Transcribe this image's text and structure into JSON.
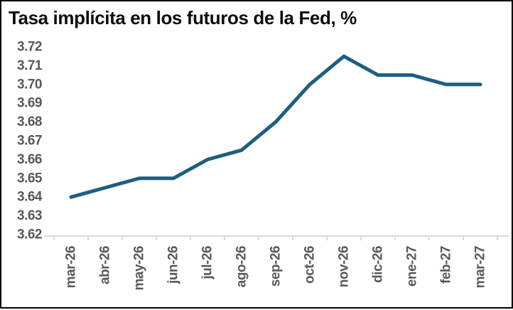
{
  "title": "Tasa implícita en los futuros de la Fed, %",
  "colors": {
    "line": "#1E5F80",
    "axis": "#D9D9D9",
    "axis_labels": "#595959",
    "title_text": "#0D0D0D",
    "background": "#FFFFFF",
    "border": "#000000"
  },
  "chart_data": {
    "type": "line",
    "title": "Tasa implícita en los futuros de la Fed, %",
    "categories": [
      "mar-26",
      "abr-26",
      "may-26",
      "jun-26",
      "jul-26",
      "ago-26",
      "sep-26",
      "oct-26",
      "nov-26",
      "dic-26",
      "ene-27",
      "feb-27",
      "mar-27"
    ],
    "values": [
      3.64,
      3.645,
      3.65,
      3.65,
      3.66,
      3.665,
      3.68,
      3.7,
      3.715,
      3.705,
      3.705,
      3.7,
      3.7
    ],
    "xlabel": "",
    "ylabel": "",
    "ylim": [
      3.62,
      3.72
    ],
    "ytick_step": 0.01,
    "ytick_labels": [
      "3.62",
      "3.63",
      "3.64",
      "3.65",
      "3.66",
      "3.67",
      "3.68",
      "3.69",
      "3.70",
      "3.71",
      "3.72"
    ],
    "grid": false,
    "legend": false,
    "line_width": 5
  }
}
